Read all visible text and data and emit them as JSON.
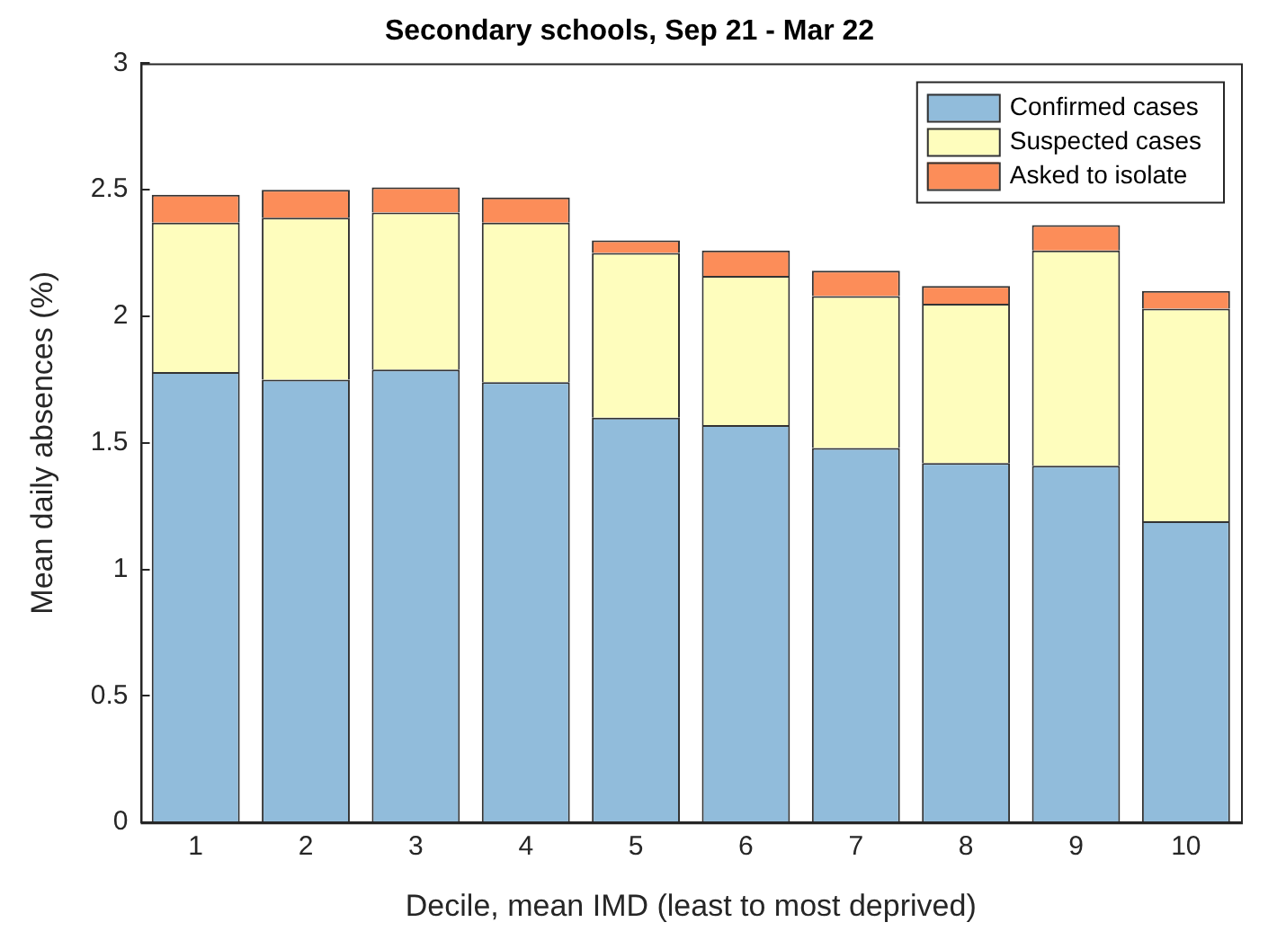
{
  "chart_data": {
    "type": "bar",
    "title": "Secondary schools, Sep 21 - Mar 22",
    "xlabel": "Decile, mean IMD (least to most deprived)",
    "ylabel": "Mean daily absences (%)",
    "categories": [
      "1",
      "2",
      "3",
      "4",
      "5",
      "6",
      "7",
      "8",
      "9",
      "10"
    ],
    "stacked": true,
    "ylim": [
      0,
      3
    ],
    "yticks": [
      0,
      0.5,
      1,
      1.5,
      2,
      2.5,
      3
    ],
    "legend": "top right",
    "series": [
      {
        "name": "Confirmed cases",
        "color": "#91bcdb",
        "values": [
          1.78,
          1.75,
          1.79,
          1.74,
          1.6,
          1.57,
          1.48,
          1.42,
          1.41,
          1.19
        ]
      },
      {
        "name": "Suspected cases",
        "color": "#fefdbd",
        "values": [
          0.59,
          0.64,
          0.62,
          0.63,
          0.65,
          0.59,
          0.6,
          0.63,
          0.85,
          0.84
        ]
      },
      {
        "name": "Asked to isolate",
        "color": "#fc8d59",
        "values": [
          0.11,
          0.11,
          0.1,
          0.1,
          0.05,
          0.1,
          0.1,
          0.07,
          0.1,
          0.07
        ]
      }
    ]
  }
}
